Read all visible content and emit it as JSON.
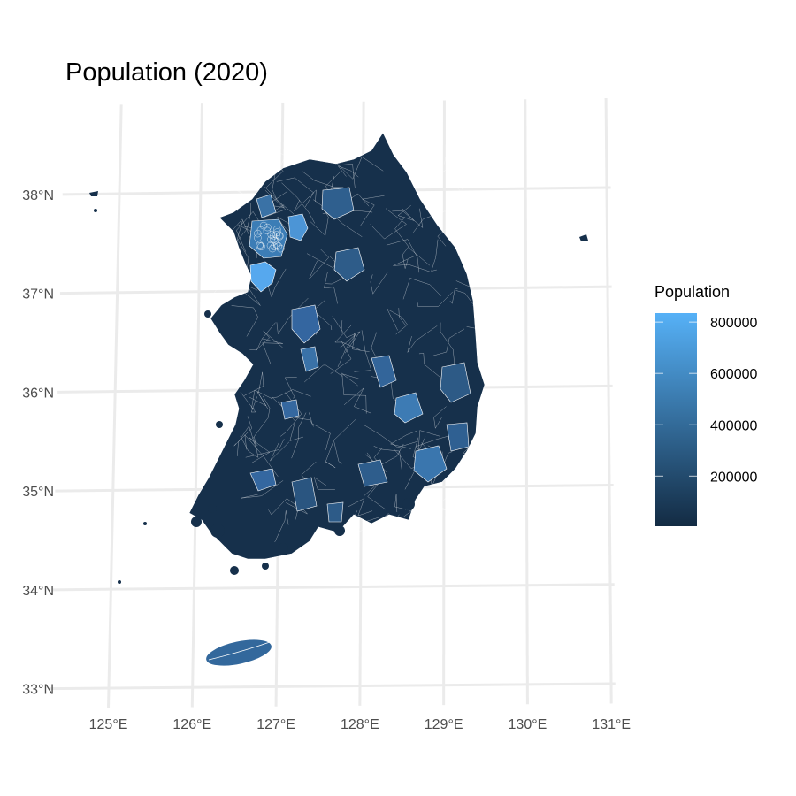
{
  "chart_data": {
    "type": "choropleth",
    "title": "Population (2020)",
    "xlabel": "",
    "ylabel": "",
    "x_ticks": [
      "125°E",
      "126°E",
      "127°E",
      "128°E",
      "129°E",
      "130°E",
      "131°E"
    ],
    "x_tick_values": [
      125,
      126,
      127,
      128,
      129,
      130,
      131
    ],
    "y_ticks": [
      "33°N",
      "34°N",
      "35°N",
      "36°N",
      "37°N",
      "38°N"
    ],
    "y_tick_values": [
      33,
      34,
      35,
      36,
      37,
      38
    ],
    "grid": true,
    "legend": {
      "title": "Population",
      "position": "right",
      "breaks": [
        200000,
        400000,
        600000,
        800000
      ],
      "labels": [
        "200000",
        "400000",
        "600000",
        "800000"
      ],
      "range": [
        5000,
        835000
      ],
      "low_color": "#132B43",
      "high_color": "#56B1F7"
    }
  }
}
